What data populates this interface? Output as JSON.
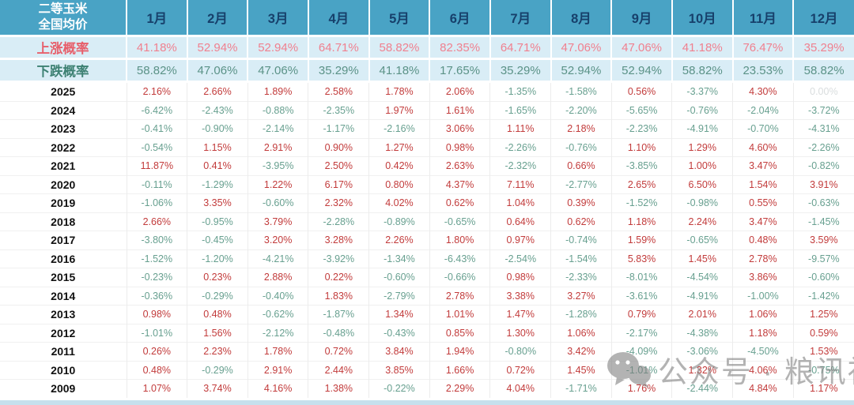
{
  "chart_data": {
    "type": "table",
    "title": "二等玉米 全国均价",
    "title_lines": [
      "二等玉米",
      "全国均价"
    ],
    "columns": [
      "1月",
      "2月",
      "3月",
      "4月",
      "5月",
      "6月",
      "7月",
      "8月",
      "9月",
      "10月",
      "11月",
      "12月"
    ],
    "probability_rows": [
      {
        "label": "上涨概率",
        "type": "rise",
        "values": [
          "41.18%",
          "52.94%",
          "52.94%",
          "64.71%",
          "58.82%",
          "82.35%",
          "64.71%",
          "47.06%",
          "47.06%",
          "41.18%",
          "76.47%",
          "35.29%"
        ]
      },
      {
        "label": "下跌概率",
        "type": "fall",
        "values": [
          "58.82%",
          "47.06%",
          "47.06%",
          "35.29%",
          "41.18%",
          "17.65%",
          "35.29%",
          "52.94%",
          "52.94%",
          "58.82%",
          "23.53%",
          "58.82%"
        ]
      }
    ],
    "year_rows": [
      {
        "year": "2025",
        "values": [
          "2.16%",
          "2.66%",
          "1.89%",
          "2.58%",
          "1.78%",
          "2.06%",
          "-1.35%",
          "-1.58%",
          "0.56%",
          "-3.37%",
          "4.30%",
          "0.00%"
        ]
      },
      {
        "year": "2024",
        "values": [
          "-6.42%",
          "-2.43%",
          "-0.88%",
          "-2.35%",
          "1.97%",
          "1.61%",
          "-1.65%",
          "-2.20%",
          "-5.65%",
          "-0.76%",
          "-2.04%",
          "-3.72%"
        ]
      },
      {
        "year": "2023",
        "values": [
          "-0.41%",
          "-0.90%",
          "-2.14%",
          "-1.17%",
          "-2.16%",
          "3.06%",
          "1.11%",
          "2.18%",
          "-2.23%",
          "-4.91%",
          "-0.70%",
          "-4.31%"
        ]
      },
      {
        "year": "2022",
        "values": [
          "-0.54%",
          "1.15%",
          "2.91%",
          "0.90%",
          "1.27%",
          "0.98%",
          "-2.26%",
          "-0.76%",
          "1.10%",
          "1.29%",
          "4.60%",
          "-2.26%"
        ]
      },
      {
        "year": "2021",
        "values": [
          "11.87%",
          "0.41%",
          "-3.95%",
          "2.50%",
          "0.42%",
          "2.63%",
          "-2.32%",
          "0.66%",
          "-3.85%",
          "1.00%",
          "3.47%",
          "-0.82%"
        ]
      },
      {
        "year": "2020",
        "values": [
          "-0.11%",
          "-1.29%",
          "1.22%",
          "6.17%",
          "0.80%",
          "4.37%",
          "7.11%",
          "-2.77%",
          "2.65%",
          "6.50%",
          "1.54%",
          "3.91%"
        ]
      },
      {
        "year": "2019",
        "values": [
          "-1.06%",
          "3.35%",
          "-0.60%",
          "2.32%",
          "4.02%",
          "0.62%",
          "1.04%",
          "0.39%",
          "-1.52%",
          "-0.98%",
          "0.55%",
          "-0.63%"
        ]
      },
      {
        "year": "2018",
        "values": [
          "2.66%",
          "-0.95%",
          "3.79%",
          "-2.28%",
          "-0.89%",
          "-0.65%",
          "0.64%",
          "0.62%",
          "1.18%",
          "2.24%",
          "3.47%",
          "-1.45%"
        ]
      },
      {
        "year": "2017",
        "values": [
          "-3.80%",
          "-0.45%",
          "3.20%",
          "3.28%",
          "2.26%",
          "1.80%",
          "0.97%",
          "-0.74%",
          "1.59%",
          "-0.65%",
          "0.48%",
          "3.59%"
        ]
      },
      {
        "year": "2016",
        "values": [
          "-1.52%",
          "-1.20%",
          "-4.21%",
          "-3.92%",
          "-1.34%",
          "-6.43%",
          "-2.54%",
          "-1.54%",
          "5.83%",
          "1.45%",
          "2.78%",
          "-9.57%"
        ]
      },
      {
        "year": "2015",
        "values": [
          "-0.23%",
          "0.23%",
          "2.88%",
          "0.22%",
          "-0.60%",
          "-0.66%",
          "0.98%",
          "-2.33%",
          "-8.01%",
          "-4.54%",
          "3.86%",
          "-0.60%"
        ]
      },
      {
        "year": "2014",
        "values": [
          "-0.36%",
          "-0.29%",
          "-0.40%",
          "1.83%",
          "-2.79%",
          "2.78%",
          "3.38%",
          "3.27%",
          "-3.61%",
          "-4.91%",
          "-1.00%",
          "-1.42%"
        ]
      },
      {
        "year": "2013",
        "values": [
          "0.98%",
          "0.48%",
          "-0.62%",
          "-1.87%",
          "1.34%",
          "1.01%",
          "1.47%",
          "-1.28%",
          "0.79%",
          "2.01%",
          "1.06%",
          "1.25%"
        ]
      },
      {
        "year": "2012",
        "values": [
          "-1.01%",
          "1.56%",
          "-2.12%",
          "-0.48%",
          "-0.43%",
          "0.85%",
          "1.30%",
          "1.06%",
          "-2.17%",
          "-4.38%",
          "1.18%",
          "0.59%"
        ]
      },
      {
        "year": "2011",
        "values": [
          "0.26%",
          "2.23%",
          "1.78%",
          "0.72%",
          "3.84%",
          "1.94%",
          "-0.80%",
          "3.42%",
          "-4.09%",
          "-3.06%",
          "-4.50%",
          "1.53%"
        ]
      },
      {
        "year": "2010",
        "values": [
          "0.48%",
          "-0.29%",
          "2.91%",
          "2.44%",
          "3.85%",
          "1.66%",
          "0.72%",
          "1.45%",
          "-1.01%",
          "1.32%",
          "4.06%",
          "-0.75%"
        ]
      },
      {
        "year": "2009",
        "values": [
          "1.07%",
          "3.74%",
          "4.16%",
          "1.38%",
          "-0.22%",
          "2.29%",
          "4.04%",
          "-1.71%",
          "1.76%",
          "-2.44%",
          "4.84%",
          "1.17%"
        ]
      }
    ],
    "layout": {
      "legend": "none",
      "grid": "light separators",
      "value_color_rule": "positive=red, negative=green, zero=light-gray"
    }
  },
  "watermark": {
    "text": "公众号 · 粮讯社",
    "icon": "wechat-icon"
  },
  "colors": {
    "header_bg": "#49A3C5",
    "month_text": "#17406B",
    "probability_row_bg": "#D9EDF6",
    "rise_label": "#E75F6B",
    "rise_value": "#F0808F",
    "fall_label": "#3D8173",
    "fall_value": "#5B9287",
    "positive_value": "#C23B3B",
    "negative_value": "#68A090",
    "zero_value": "#D9DDDE"
  }
}
